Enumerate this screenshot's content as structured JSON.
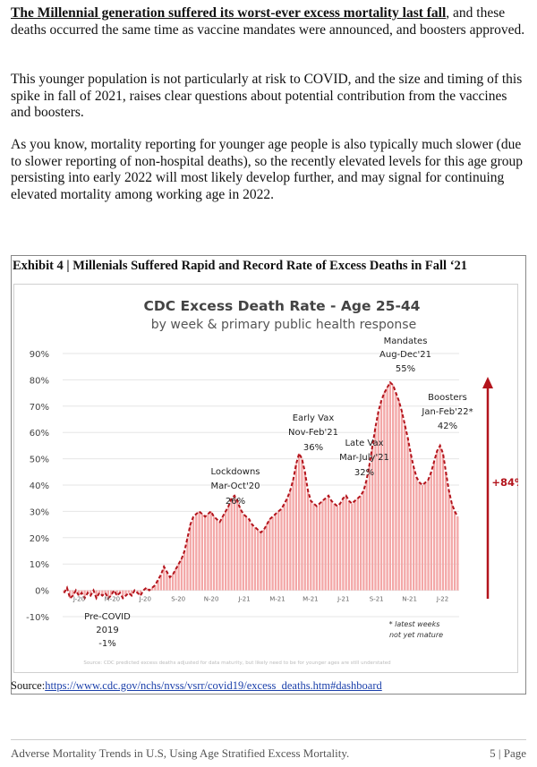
{
  "paragraphs": {
    "p1_bold": "The Millennial generation suffered its worst-ever excess mortality last fall",
    "p1_rest": ", and these deaths occurred the same time as vaccine mandates were announced, and boosters approved.",
    "p2": "This younger population is not particularly at risk to COVID, and the size and timing of this spike in fall of 2021, raises clear questions about potential contribution from the vaccines and boosters.",
    "p3": "As you know, mortality reporting for younger age people is also typically much slower (due to slower reporting of non-hospital deaths), so the recently elevated levels for this age group persisting into early 2022 will most likely develop further, and may signal for continuing elevated mortality among working age in 2022."
  },
  "exhibit_title": "Exhibit 4 | Millenials Suffered Rapid and Record Rate of Excess Deaths in Fall ‘21",
  "chart_data": {
    "type": "bar",
    "title": "CDC Excess Death Rate - Age 25-44",
    "subtitle": "by week & primary public health response",
    "ylim": [
      -10,
      90
    ],
    "yticks": [
      "-10%",
      "0%",
      "10%",
      "20%",
      "30%",
      "40%",
      "50%",
      "60%",
      "70%",
      "80%",
      "90%"
    ],
    "ytick_values": [
      -10,
      0,
      10,
      20,
      30,
      40,
      50,
      60,
      70,
      80,
      90
    ],
    "xticks": [
      "J-20",
      "M-20",
      "J-20",
      "S-20",
      "N-20",
      "J-21",
      "M-21",
      "M-21",
      "J-21",
      "S-21",
      "N-21",
      "J-22"
    ],
    "values": [
      -1,
      1,
      -3,
      -2,
      0,
      -2,
      -1,
      -3,
      -1,
      -2,
      0,
      -3,
      -1,
      -2,
      -1,
      -3,
      -2,
      0,
      -2,
      -1,
      -3,
      -2,
      -1,
      -2,
      0,
      -1,
      -2,
      0,
      1,
      0,
      1,
      2,
      4,
      6,
      9,
      7,
      5,
      6,
      8,
      10,
      12,
      15,
      20,
      25,
      28,
      29,
      30,
      29,
      28,
      29,
      30,
      28,
      27,
      26,
      28,
      30,
      32,
      35,
      36,
      34,
      31,
      29,
      28,
      27,
      25,
      24,
      23,
      22,
      23,
      25,
      27,
      28,
      29,
      30,
      31,
      33,
      35,
      38,
      42,
      48,
      52,
      50,
      45,
      38,
      34,
      33,
      32,
      33,
      34,
      35,
      36,
      34,
      33,
      32,
      33,
      35,
      36,
      34,
      33,
      34,
      35,
      36,
      38,
      42,
      48,
      55,
      62,
      68,
      72,
      75,
      77,
      79,
      78,
      75,
      72,
      68,
      63,
      58,
      52,
      47,
      43,
      41,
      40,
      41,
      42,
      45,
      49,
      53,
      55,
      52,
      45,
      38,
      33,
      30,
      28
    ],
    "line_color": "#b3141c",
    "bar_color": "#f3a7a7",
    "grid": true,
    "annotations": [
      {
        "text": "Pre-COVID",
        "text2": "2019",
        "text3": "-1%"
      },
      {
        "text": "Lockdowns",
        "text2": "Mar-Oct'20",
        "text3": "26%"
      },
      {
        "text": "Early Vax",
        "text2": "Nov-Feb'21",
        "text3": "36%"
      },
      {
        "text": "Late Vax",
        "text2": "Mar-July'21",
        "text3": "32%"
      },
      {
        "text": "Mandates",
        "text2": "Aug-Dec'21",
        "text3": "55%"
      },
      {
        "text": "Boosters",
        "text2": "Jan-Feb'22*",
        "text3": "42%"
      }
    ],
    "increase_label": "+84%",
    "footnote": "* latest weeks",
    "footnote2": "not yet mature",
    "fine_print": "Source: CDC predicted excess deaths adjusted for data maturity, but likely need to be for younger ages are still understated"
  },
  "source": {
    "label": "Source:",
    "link": "https://www.cdc.gov/nchs/nvss/vsrr/covid19/excess_deaths.htm#dashboard"
  },
  "footer": {
    "left": "Adverse Mortality Trends in U.S, Using Age Stratified Excess Mortality.",
    "right": "5 | Page"
  }
}
